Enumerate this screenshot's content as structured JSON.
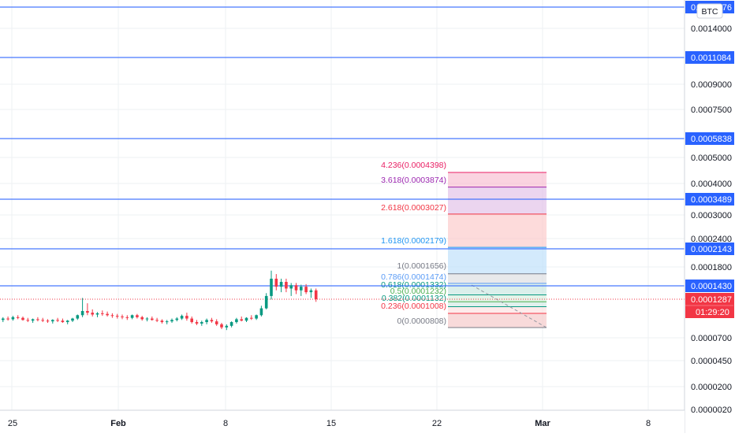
{
  "chart_data": {
    "type": "candlestick",
    "currency_label": "BTC",
    "current_price": "0.0001287",
    "countdown": "01:29:20",
    "x_tick_labels": [
      "25",
      "Feb",
      "8",
      "15",
      "22",
      "Mar",
      "8"
    ],
    "y_tick_labels": [
      "0.0014000",
      "0.0009000",
      "0.0007500",
      "0.0005000",
      "0.0004000",
      "0.0003000",
      "0.0002400",
      "0.0001800",
      "0.0000700",
      "0.0000450",
      "0.0000200",
      "0.0000020"
    ],
    "horizontal_levels": [
      "0.0011084",
      "0.0005838",
      "0.0003489",
      "0.0002143",
      "0.0001430"
    ],
    "top_level_label": "0.0019976",
    "fib_levels": [
      {
        "label": "4.236(0.0004398)",
        "color": "#e91e63"
      },
      {
        "label": "3.618(0.0003874)",
        "color": "#9c27b0"
      },
      {
        "label": "2.618(0.0003027)",
        "color": "#f23645"
      },
      {
        "label": "1.618(0.0002179)",
        "color": "#2196f3"
      },
      {
        "label": "1(0.0001656)",
        "color": "#787b86"
      },
      {
        "label": "0.786(0.0001474)",
        "color": "#5b9cf6"
      },
      {
        "label": "0.618(0.0001332)",
        "color": "#089981"
      },
      {
        "label": "0.5(0.0001232)",
        "color": "#4caf50"
      },
      {
        "label": "0.382(0.0001132)",
        "color": "#089981"
      },
      {
        "label": "0.236(0.0001008)",
        "color": "#f23645"
      },
      {
        "label": "0(0.0000808)",
        "color": "#787b86"
      }
    ],
    "candles": [
      [
        9.1e-05,
        9.5e-05,
        8.8e-05,
        9.3e-05
      ],
      [
        9.3e-05,
        9.6e-05,
        9e-05,
        9.2e-05
      ],
      [
        9.2e-05,
        9.7e-05,
        9e-05,
        9.5e-05
      ],
      [
        9.5e-05,
        9.8e-05,
        9.2e-05,
        9.4e-05
      ],
      [
        9.4e-05,
        9.6e-05,
        9e-05,
        9.1e-05
      ],
      [
        9.1e-05,
        9.4e-05,
        8.8e-05,
        9e-05
      ],
      [
        9e-05,
        9.3e-05,
        8.7e-05,
        9.2e-05
      ],
      [
        9.2e-05,
        9.5e-05,
        8.9e-05,
        9.1e-05
      ],
      [
        9.1e-05,
        9.4e-05,
        8.8e-05,
        9e-05
      ],
      [
        9e-05,
        9.2e-05,
        8.7e-05,
        8.9e-05
      ],
      [
        8.9e-05,
        9.2e-05,
        8.6e-05,
        9.1e-05
      ],
      [
        9.1e-05,
        9.4e-05,
        8.8e-05,
        9e-05
      ],
      [
        9e-05,
        9.3e-05,
        8.7e-05,
        8.8e-05
      ],
      [
        8.8e-05,
        9.1e-05,
        8.5e-05,
        9e-05
      ],
      [
        9e-05,
        9.4e-05,
        8.8e-05,
        9.3e-05
      ],
      [
        9.3e-05,
        9.9e-05,
        9.1e-05,
        9.8e-05
      ],
      [
        9.8e-05,
        0.00013,
        9.5e-05,
        0.000105
      ],
      [
        0.000105,
        0.00012,
        9.8e-05,
        0.000102
      ],
      [
        0.000102,
        0.000108,
        9.6e-05,
        9.9e-05
      ],
      [
        9.9e-05,
        0.000103,
        9.5e-05,
        0.000101
      ],
      [
        0.000101,
        0.000106,
        9.7e-05,
        0.0001
      ],
      [
        0.0001,
        0.000104,
        9.6e-05,
        9.8e-05
      ],
      [
        9.8e-05,
        0.000101,
        9.4e-05,
        9.7e-05
      ],
      [
        9.7e-05,
        0.0001,
        9.3e-05,
        9.6e-05
      ],
      [
        9.6e-05,
        9.9e-05,
        9.2e-05,
        9.5e-05
      ],
      [
        9.5e-05,
        9.8e-05,
        9.1e-05,
        9.4e-05
      ],
      [
        9.4e-05,
        9.9e-05,
        9.2e-05,
        9.8e-05
      ],
      [
        9.8e-05,
        0.0001,
        9.3e-05,
        9.5e-05
      ],
      [
        9.5e-05,
        9.7e-05,
        9e-05,
        9.2e-05
      ],
      [
        9.2e-05,
        9.5e-05,
        8.9e-05,
        9.3e-05
      ],
      [
        9.3e-05,
        9.6e-05,
        9e-05,
        9.1e-05
      ],
      [
        9.1e-05,
        9.4e-05,
        8.8e-05,
        9e-05
      ],
      [
        9e-05,
        9.2e-05,
        8.6e-05,
        8.8e-05
      ],
      [
        8.8e-05,
        9.1e-05,
        8.5e-05,
        8.9e-05
      ],
      [
        8.9e-05,
        9.3e-05,
        8.7e-05,
        9.1e-05
      ],
      [
        9.1e-05,
        9.5e-05,
        8.9e-05,
        9.3e-05
      ],
      [
        9.3e-05,
        9.9e-05,
        9.1e-05,
        9.7e-05
      ],
      [
        9.7e-05,
        0.000102,
        9e-05,
        9.3e-05
      ],
      [
        9.3e-05,
        9.6e-05,
        8.6e-05,
        8.8e-05
      ],
      [
        8.8e-05,
        9.1e-05,
        8.4e-05,
        8.6e-05
      ],
      [
        8.6e-05,
        9e-05,
        8.3e-05,
        8.8e-05
      ],
      [
        8.8e-05,
        9.3e-05,
        8.5e-05,
        9.1e-05
      ],
      [
        9.1e-05,
        9.4e-05,
        8.7e-05,
        8.9e-05
      ],
      [
        8.9e-05,
        9.2e-05,
        8.3e-05,
        8.5e-05
      ],
      [
        8.5e-05,
        8.7e-05,
        7.9e-05,
        8.1e-05
      ],
      [
        8.1e-05,
        8.5e-05,
        7.8e-05,
        8.3e-05
      ],
      [
        8.3e-05,
        8.9e-05,
        8.1e-05,
        8.8e-05
      ],
      [
        8.8e-05,
        9.4e-05,
        8.6e-05,
        9.2e-05
      ],
      [
        9.2e-05,
        9.6e-05,
        8.9e-05,
        9e-05
      ],
      [
        9e-05,
        9.5e-05,
        8.8e-05,
        9.4e-05
      ],
      [
        9.4e-05,
        9.8e-05,
        9.1e-05,
        9.3e-05
      ],
      [
        9.3e-05,
        9.9e-05,
        9.1e-05,
        9.8e-05
      ],
      [
        9.8e-05,
        0.000115,
        9.6e-05,
        0.00011
      ],
      [
        0.00011,
        0.000135,
        0.000108,
        0.000132
      ],
      [
        0.000132,
        0.000172,
        0.000128,
        0.000156
      ],
      [
        0.000156,
        0.000165,
        0.000138,
        0.000142
      ],
      [
        0.000142,
        0.000156,
        0.000136,
        0.00015
      ],
      [
        0.00015,
        0.000156,
        0.000136,
        0.00014
      ],
      [
        0.00014,
        0.000148,
        0.000132,
        0.000144
      ],
      [
        0.000144,
        0.000148,
        0.000134,
        0.000138
      ],
      [
        0.000138,
        0.000145,
        0.000132,
        0.000142
      ],
      [
        0.000142,
        0.000146,
        0.000134,
        0.000136
      ],
      [
        0.000136,
        0.00014,
        0.00013,
        0.000138
      ],
      [
        0.000138,
        0.00014,
        0.000123,
        0.0001287
      ]
    ]
  }
}
